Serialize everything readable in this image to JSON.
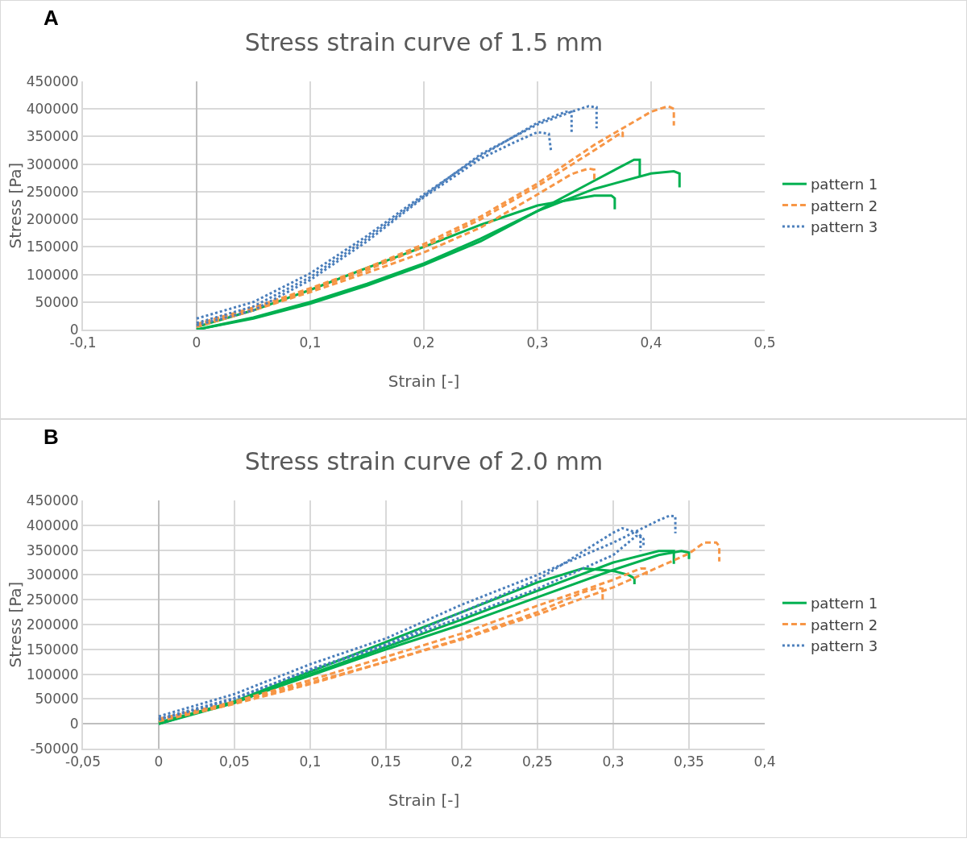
{
  "chart_data": [
    {
      "type": "line",
      "title": "Stress strain curve of 1.5 mm",
      "xlabel": "Strain [-]",
      "ylabel": "Stress [Pa]",
      "annotations": [
        "A"
      ],
      "xlim": [
        -0.1,
        0.5
      ],
      "xticks": [
        {
          "value": -0.1,
          "label": "-0,1"
        },
        0,
        {
          "value": 0.1,
          "label": "0,1"
        },
        {
          "value": 0.2,
          "label": "0,2"
        },
        {
          "value": 0.3,
          "label": "0,3"
        },
        {
          "value": 0.4,
          "label": "0,4"
        },
        {
          "value": 0.5,
          "label": "0,5"
        }
      ],
      "ylim": [
        0,
        450000
      ],
      "yticks": [
        0,
        50000,
        100000,
        150000,
        200000,
        250000,
        300000,
        350000,
        400000,
        450000
      ],
      "grid": true,
      "legend": "right",
      "series": [
        {
          "name": "pattern 1",
          "color": "#00b050",
          "line_style": "solid",
          "x": [
            0,
            0.05,
            0.1,
            0.15,
            0.2,
            0.25,
            0.3,
            0.35,
            0.385,
            0.39,
            0.39
          ],
          "values": [
            0,
            20000,
            47000,
            80000,
            117000,
            160000,
            215000,
            270000,
            308000,
            308000,
            277000
          ]
        },
        {
          "color": "#00b050",
          "line_style": "solid",
          "x": [
            0,
            0.05,
            0.1,
            0.15,
            0.2,
            0.25,
            0.3,
            0.35,
            0.4,
            0.42,
            0.425,
            0.425
          ],
          "values": [
            0,
            22000,
            50000,
            83000,
            120000,
            165000,
            215000,
            255000,
            283000,
            287000,
            283000,
            258000
          ]
        },
        {
          "color": "#00b050",
          "line_style": "solid",
          "x": [
            0,
            0.05,
            0.1,
            0.15,
            0.2,
            0.25,
            0.3,
            0.35,
            0.365,
            0.368,
            0.368
          ],
          "values": [
            5000,
            35000,
            72000,
            112000,
            150000,
            190000,
            225000,
            243000,
            243000,
            238000,
            218000
          ]
        },
        {
          "name": "pattern 2",
          "color": "#f79646",
          "line_style": "dashed",
          "x": [
            0,
            0.05,
            0.1,
            0.15,
            0.2,
            0.25,
            0.3,
            0.35,
            0.4,
            0.415,
            0.42,
            0.42
          ],
          "values": [
            10000,
            40000,
            75000,
            112000,
            155000,
            205000,
            265000,
            335000,
            395000,
            405000,
            400000,
            370000
          ]
        },
        {
          "color": "#f79646",
          "line_style": "dashed",
          "x": [
            0,
            0.05,
            0.1,
            0.15,
            0.2,
            0.25,
            0.3,
            0.33,
            0.345,
            0.35,
            0.35
          ],
          "values": [
            5000,
            35000,
            68000,
            103000,
            140000,
            185000,
            245000,
            282000,
            292000,
            290000,
            270000
          ]
        },
        {
          "color": "#f79646",
          "line_style": "dashed",
          "x": [
            0,
            0.05,
            0.1,
            0.15,
            0.2,
            0.25,
            0.3,
            0.35,
            0.37,
            0.375,
            0.375
          ],
          "values": [
            8000,
            38000,
            72000,
            108000,
            150000,
            200000,
            260000,
            325000,
            352000,
            358000,
            345000
          ]
        },
        {
          "name": "pattern 3",
          "color": "#4a7ebb",
          "line_style": "dotted",
          "x": [
            0,
            0.05,
            0.1,
            0.15,
            0.2,
            0.25,
            0.28,
            0.3,
            0.31,
            0.312
          ],
          "values": [
            8000,
            35000,
            90000,
            160000,
            240000,
            310000,
            340000,
            358000,
            355000,
            322000
          ]
        },
        {
          "color": "#4a7ebb",
          "line_style": "dotted",
          "x": [
            0,
            0.05,
            0.1,
            0.15,
            0.2,
            0.25,
            0.3,
            0.325,
            0.33,
            0.33
          ],
          "values": [
            20000,
            50000,
            102000,
            170000,
            245000,
            315000,
            375000,
            395000,
            395000,
            358000
          ]
        },
        {
          "color": "#4a7ebb",
          "line_style": "dotted",
          "x": [
            0,
            0.05,
            0.1,
            0.15,
            0.2,
            0.25,
            0.3,
            0.33,
            0.345,
            0.352,
            0.352
          ],
          "values": [
            12000,
            42000,
            95000,
            165000,
            242000,
            318000,
            372000,
            395000,
            405000,
            403000,
            365000
          ]
        }
      ]
    },
    {
      "type": "line",
      "title": "Stress strain curve of 2.0 mm",
      "xlabel": "Strain [-]",
      "ylabel": "Stress [Pa]",
      "annotations": [
        "B"
      ],
      "xlim": [
        -0.05,
        0.4
      ],
      "xticks": [
        {
          "value": -0.05,
          "label": "-0,05"
        },
        0,
        {
          "value": 0.05,
          "label": "0,05"
        },
        {
          "value": 0.1,
          "label": "0,1"
        },
        {
          "value": 0.15,
          "label": "0,15"
        },
        {
          "value": 0.2,
          "label": "0,2"
        },
        {
          "value": 0.25,
          "label": "0,25"
        },
        {
          "value": 0.3,
          "label": "0,3"
        },
        {
          "value": 0.35,
          "label": "0,35"
        },
        {
          "value": 0.4,
          "label": "0,4"
        }
      ],
      "ylim": [
        -50000,
        450000
      ],
      "yticks": [
        -50000,
        0,
        50000,
        100000,
        150000,
        200000,
        250000,
        300000,
        350000,
        400000,
        450000
      ],
      "grid": true,
      "legend": "right",
      "series": [
        {
          "name": "pattern 1",
          "color": "#00b050",
          "line_style": "solid",
          "x": [
            0,
            0.05,
            0.1,
            0.15,
            0.2,
            0.25,
            0.28,
            0.3,
            0.31,
            0.314,
            0.314
          ],
          "values": [
            0,
            45000,
            105000,
            165000,
            225000,
            285000,
            313000,
            308000,
            300000,
            293000,
            281000
          ]
        },
        {
          "color": "#00b050",
          "line_style": "solid",
          "x": [
            0,
            0.05,
            0.1,
            0.15,
            0.2,
            0.25,
            0.3,
            0.33,
            0.34,
            0.34
          ],
          "values": [
            0,
            42000,
            100000,
            155000,
            210000,
            268000,
            325000,
            348000,
            348000,
            322000
          ]
        },
        {
          "color": "#00b050",
          "line_style": "solid",
          "x": [
            0,
            0.05,
            0.1,
            0.15,
            0.2,
            0.25,
            0.3,
            0.33,
            0.345,
            0.35,
            0.35
          ],
          "values": [
            3000,
            44000,
            97000,
            150000,
            200000,
            255000,
            310000,
            340000,
            348000,
            345000,
            332000
          ]
        },
        {
          "name": "pattern 2",
          "color": "#f79646",
          "line_style": "dashed",
          "x": [
            0,
            0.05,
            0.1,
            0.15,
            0.2,
            0.25,
            0.28,
            0.29,
            0.293,
            0.293
          ],
          "values": [
            5000,
            40000,
            80000,
            125000,
            172000,
            225000,
            265000,
            274000,
            272000,
            246000
          ]
        },
        {
          "color": "#f79646",
          "line_style": "dashed",
          "x": [
            0,
            0.05,
            0.1,
            0.15,
            0.2,
            0.25,
            0.3,
            0.318,
            0.322,
            0.322
          ],
          "values": [
            8000,
            45000,
            88000,
            135000,
            182000,
            238000,
            290000,
            313000,
            313000,
            300000
          ]
        },
        {
          "color": "#f79646",
          "line_style": "dashed",
          "x": [
            0,
            0.05,
            0.1,
            0.15,
            0.2,
            0.25,
            0.3,
            0.35,
            0.36,
            0.368,
            0.37,
            0.37
          ],
          "values": [
            10000,
            43000,
            83000,
            125000,
            170000,
            220000,
            275000,
            343000,
            365000,
            365000,
            358000,
            327000
          ]
        },
        {
          "name": "pattern 3",
          "color": "#4a7ebb",
          "line_style": "dotted",
          "x": [
            0,
            0.05,
            0.1,
            0.15,
            0.2,
            0.25,
            0.3,
            0.33,
            0.337,
            0.341,
            0.341
          ],
          "values": [
            15000,
            60000,
            120000,
            172000,
            240000,
            300000,
            365000,
            410000,
            419000,
            418000,
            384000
          ]
        },
        {
          "color": "#4a7ebb",
          "line_style": "dotted",
          "x": [
            0,
            0.05,
            0.1,
            0.15,
            0.2,
            0.25,
            0.3,
            0.306,
            0.316,
            0.32,
            0.32
          ],
          "values": [
            8000,
            50000,
            110000,
            160000,
            225000,
            290000,
            385000,
            394000,
            385000,
            372000,
            355000
          ]
        },
        {
          "color": "#4a7ebb",
          "line_style": "dotted",
          "x": [
            0,
            0.05,
            0.1,
            0.15,
            0.2,
            0.25,
            0.3,
            0.315,
            0.318,
            0.318
          ],
          "values": [
            10000,
            52000,
            108000,
            158000,
            215000,
            272000,
            340000,
            378000,
            378000,
            348000
          ]
        }
      ]
    }
  ]
}
